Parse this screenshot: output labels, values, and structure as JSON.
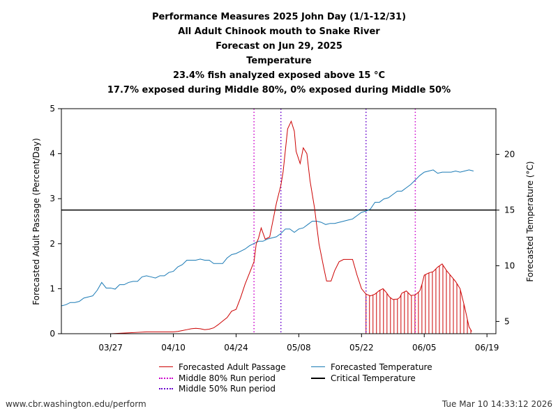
{
  "title_lines": [
    "Performance Measures 2025 John Day (1/1-12/31)",
    "All Adult Chinook mouth to Snake River",
    "Forecast on Jun 29, 2025",
    "Temperature",
    "23.4% fish analyzed exposed above 15 °C",
    "17.7% exposed during Middle 80%, 0% exposed during Middle 50%"
  ],
  "footer": {
    "left": "www.cbr.washington.edu/perform",
    "right": "Tue Mar 10 14:33:12 2026"
  },
  "legend": [
    {
      "label": "Forecasted Adult Passage",
      "style": "line",
      "color": "#cc0000"
    },
    {
      "label": "Forecasted Temperature",
      "style": "line",
      "color": "#1a7ab5"
    },
    {
      "label": "Middle 80% Run period",
      "style": "dotted",
      "color": "#cc00cc"
    },
    {
      "label": "Critical Temperature",
      "style": "line",
      "color": "#000000"
    },
    {
      "label": "Middle 50% Run period",
      "style": "dotted",
      "color": "#6600cc"
    }
  ],
  "chart_data": {
    "type": "line",
    "x_start_day": 75,
    "x_end_day": 172,
    "x_ticks": [
      {
        "label": "03/27",
        "day": 86
      },
      {
        "label": "04/10",
        "day": 100
      },
      {
        "label": "04/24",
        "day": 114
      },
      {
        "label": "05/08",
        "day": 128
      },
      {
        "label": "05/22",
        "day": 142
      },
      {
        "label": "06/05",
        "day": 156
      },
      {
        "label": "06/19",
        "day": 170
      }
    ],
    "ylabel": "Forecasted Adult Passage (Percent/Day)",
    "ylim": [
      0,
      5
    ],
    "y_ticks": [
      0,
      1,
      2,
      3,
      4,
      5
    ],
    "y2label": "Forecasted Temperature (°C)",
    "y2lim": [
      3.9,
      24.1
    ],
    "y2_ticks": [
      5,
      10,
      15,
      20
    ],
    "critical_temperature": 15,
    "middle_80_days": [
      118,
      154
    ],
    "middle_50_days": [
      124,
      143
    ],
    "passage_color": "#cc0000",
    "temperature_color": "#1a7ab5",
    "m80_color": "#cc00cc",
    "m50_color": "#6600cc",
    "exposed_from_day": 143,
    "passage": [
      [
        75,
        0
      ],
      [
        86,
        0
      ],
      [
        88,
        0.01
      ],
      [
        90,
        0.02
      ],
      [
        92,
        0.03
      ],
      [
        94,
        0.04
      ],
      [
        96,
        0.04
      ],
      [
        98,
        0.04
      ],
      [
        100,
        0.04
      ],
      [
        101,
        0.05
      ],
      [
        102,
        0.07
      ],
      [
        103,
        0.09
      ],
      [
        104,
        0.11
      ],
      [
        105,
        0.12
      ],
      [
        106,
        0.11
      ],
      [
        107,
        0.09
      ],
      [
        108,
        0.1
      ],
      [
        109,
        0.13
      ],
      [
        110,
        0.2
      ],
      [
        111,
        0.28
      ],
      [
        112,
        0.36
      ],
      [
        113,
        0.5
      ],
      [
        114,
        0.54
      ],
      [
        115,
        0.8
      ],
      [
        116,
        1.1
      ],
      [
        117,
        1.35
      ],
      [
        118,
        1.6
      ],
      [
        118.5,
        2.0
      ],
      [
        119,
        2.12
      ],
      [
        119.6,
        2.35
      ],
      [
        120.5,
        2.1
      ],
      [
        121.5,
        2.15
      ],
      [
        122,
        2.4
      ],
      [
        123,
        2.9
      ],
      [
        124,
        3.3
      ],
      [
        124.5,
        3.6
      ],
      [
        125.5,
        4.55
      ],
      [
        126.3,
        4.72
      ],
      [
        127,
        4.5
      ],
      [
        127.4,
        4.05
      ],
      [
        128.3,
        3.78
      ],
      [
        129,
        4.13
      ],
      [
        129.8,
        4.0
      ],
      [
        130.5,
        3.4
      ],
      [
        131.5,
        2.8
      ],
      [
        132.5,
        2.0
      ],
      [
        133.5,
        1.5
      ],
      [
        134.2,
        1.17
      ],
      [
        135.2,
        1.17
      ],
      [
        136,
        1.4
      ],
      [
        137,
        1.6
      ],
      [
        138,
        1.65
      ],
      [
        139,
        1.65
      ],
      [
        140,
        1.65
      ],
      [
        141,
        1.3
      ],
      [
        142,
        1.0
      ],
      [
        143,
        0.88
      ],
      [
        144,
        0.84
      ],
      [
        145,
        0.88
      ],
      [
        146,
        0.96
      ],
      [
        146.8,
        1.0
      ],
      [
        147.5,
        0.92
      ],
      [
        148.2,
        0.82
      ],
      [
        149,
        0.76
      ],
      [
        150,
        0.77
      ],
      [
        150.5,
        0.8
      ],
      [
        151,
        0.9
      ],
      [
        152,
        0.95
      ],
      [
        153,
        0.85
      ],
      [
        154,
        0.86
      ],
      [
        155,
        0.95
      ],
      [
        155.5,
        1.1
      ],
      [
        156,
        1.3
      ],
      [
        157,
        1.35
      ],
      [
        158,
        1.38
      ],
      [
        159,
        1.48
      ],
      [
        160,
        1.55
      ],
      [
        161,
        1.4
      ],
      [
        162,
        1.28
      ],
      [
        163,
        1.16
      ],
      [
        164,
        1.0
      ],
      [
        165,
        0.6
      ],
      [
        166,
        0.15
      ],
      [
        166.6,
        0.05
      ]
    ],
    "temperature": [
      [
        75,
        6.4
      ],
      [
        76,
        6.5
      ],
      [
        77,
        6.7
      ],
      [
        78,
        6.7
      ],
      [
        79,
        6.8
      ],
      [
        80,
        7.1
      ],
      [
        81,
        7.2
      ],
      [
        82,
        7.3
      ],
      [
        83,
        7.8
      ],
      [
        84,
        8.5
      ],
      [
        85,
        8.0
      ],
      [
        86,
        8.0
      ],
      [
        87,
        7.9
      ],
      [
        88,
        8.3
      ],
      [
        89,
        8.3
      ],
      [
        90,
        8.5
      ],
      [
        91,
        8.6
      ],
      [
        92,
        8.6
      ],
      [
        93,
        9.0
      ],
      [
        94,
        9.1
      ],
      [
        95,
        9.0
      ],
      [
        96,
        8.9
      ],
      [
        97,
        9.1
      ],
      [
        98,
        9.1
      ],
      [
        99,
        9.4
      ],
      [
        100,
        9.5
      ],
      [
        101,
        9.9
      ],
      [
        102,
        10.1
      ],
      [
        103,
        10.5
      ],
      [
        104,
        10.5
      ],
      [
        105,
        10.5
      ],
      [
        106,
        10.6
      ],
      [
        107,
        10.5
      ],
      [
        108,
        10.5
      ],
      [
        109,
        10.2
      ],
      [
        110,
        10.2
      ],
      [
        111,
        10.2
      ],
      [
        112,
        10.7
      ],
      [
        113,
        11.0
      ],
      [
        114,
        11.1
      ],
      [
        115,
        11.3
      ],
      [
        116,
        11.5
      ],
      [
        117,
        11.8
      ],
      [
        118,
        12.0
      ],
      [
        119,
        12.2
      ],
      [
        120,
        12.2
      ],
      [
        121,
        12.4
      ],
      [
        122,
        12.5
      ],
      [
        123,
        12.6
      ],
      [
        124,
        12.9
      ],
      [
        125,
        13.3
      ],
      [
        126,
        13.3
      ],
      [
        127,
        13.0
      ],
      [
        128,
        13.3
      ],
      [
        129,
        13.4
      ],
      [
        130,
        13.7
      ],
      [
        131,
        14.0
      ],
      [
        132,
        14.0
      ],
      [
        133,
        13.9
      ],
      [
        134,
        13.7
      ],
      [
        135,
        13.8
      ],
      [
        136,
        13.8
      ],
      [
        137,
        13.9
      ],
      [
        138,
        14.0
      ],
      [
        139,
        14.1
      ],
      [
        140,
        14.2
      ],
      [
        141,
        14.5
      ],
      [
        142,
        14.8
      ],
      [
        143,
        14.9
      ],
      [
        144,
        15.1
      ],
      [
        145,
        15.7
      ],
      [
        146,
        15.7
      ],
      [
        147,
        16.0
      ],
      [
        148,
        16.1
      ],
      [
        149,
        16.4
      ],
      [
        150,
        16.7
      ],
      [
        151,
        16.7
      ],
      [
        152,
        17.0
      ],
      [
        153,
        17.3
      ],
      [
        154,
        17.7
      ],
      [
        155,
        18.1
      ],
      [
        156,
        18.4
      ],
      [
        157,
        18.5
      ],
      [
        158,
        18.6
      ],
      [
        159,
        18.3
      ],
      [
        160,
        18.4
      ],
      [
        161,
        18.4
      ],
      [
        162,
        18.4
      ],
      [
        163,
        18.5
      ],
      [
        164,
        18.4
      ],
      [
        165,
        18.5
      ],
      [
        166,
        18.6
      ],
      [
        167,
        18.5
      ]
    ]
  }
}
